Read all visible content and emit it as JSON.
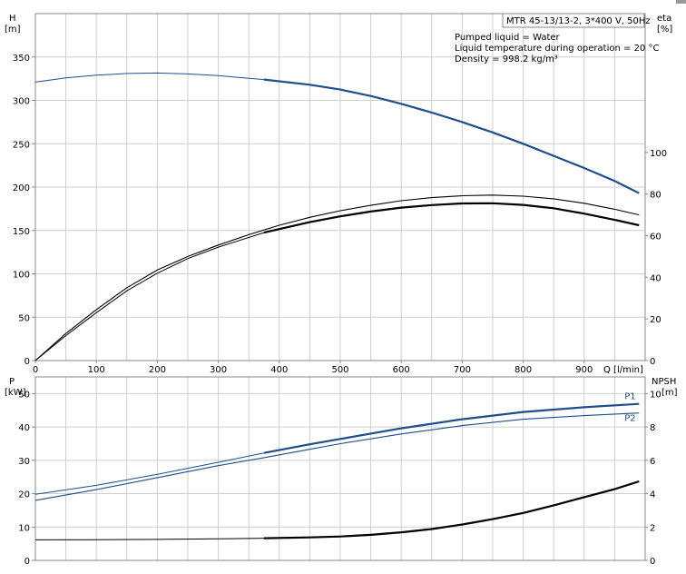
{
  "chart_data": [
    {
      "type": "line",
      "id": "head-efficiency",
      "ylabel": "H",
      "yunit": "[m]",
      "y2label": "eta",
      "y2unit": "[%]",
      "xlabel": "Q [l/min]",
      "xlim": [
        0,
        1000
      ],
      "ylim": [
        0,
        400
      ],
      "y2lim": [
        0,
        166.7
      ],
      "xticks": [
        "0",
        "100",
        "200",
        "300",
        "400",
        "500",
        "600",
        "700",
        "800",
        "900"
      ],
      "xtick_values": [
        0,
        100,
        200,
        300,
        400,
        500,
        600,
        700,
        800,
        900
      ],
      "yticks": [
        "0",
        "50",
        "100",
        "150",
        "200",
        "250",
        "300",
        "350"
      ],
      "ytick_values": [
        0,
        50,
        100,
        150,
        200,
        250,
        300,
        350
      ],
      "y2ticks": [
        "0",
        "20",
        "40",
        "60",
        "80",
        "100"
      ],
      "y2tick_values": [
        0,
        20,
        40,
        60,
        80,
        100
      ],
      "grid": true,
      "info_box": "MTR 45-13/13-2, 3*400 V, 50Hz",
      "annotations": [
        "Pumped liquid = Water",
        "Liquid temperature during operation = 20 °C",
        "Density = 998.2 kg/m³"
      ],
      "colors": {
        "head": "#1f4e8c",
        "efficiency": "#000000"
      },
      "series": [
        {
          "axis": "left",
          "role": "head",
          "x": [
            0,
            50,
            100,
            150,
            200,
            250,
            300,
            375,
            450,
            500,
            550,
            600,
            650,
            700,
            750,
            800,
            850,
            900,
            950,
            990
          ],
          "values": [
            321,
            326,
            329,
            331,
            331.5,
            330.5,
            328.5,
            324,
            318,
            312.5,
            305,
            296,
            286,
            275,
            263,
            250,
            236,
            222,
            207,
            193
          ],
          "operating_range": [
            375,
            990
          ]
        },
        {
          "axis": "right",
          "role": "efficiency-1",
          "x": [
            0,
            50,
            100,
            150,
            200,
            250,
            300,
            350,
            400,
            450,
            500,
            550,
            600,
            650,
            700,
            750,
            800,
            850,
            900,
            950,
            990
          ],
          "values": [
            0,
            13,
            24.5,
            35,
            43.5,
            50,
            55.5,
            60.5,
            65,
            68.8,
            72,
            74.6,
            76.8,
            78.3,
            79.2,
            79.5,
            79,
            77.7,
            75.6,
            72.7,
            70
          ],
          "operating_range": [
            0,
            990
          ]
        },
        {
          "axis": "right",
          "role": "efficiency-2",
          "x": [
            0,
            50,
            100,
            150,
            200,
            250,
            300,
            375,
            400,
            450,
            500,
            550,
            600,
            650,
            700,
            750,
            800,
            850,
            900,
            950,
            990
          ],
          "values": [
            0,
            12,
            23,
            33.5,
            42,
            49,
            54.5,
            61.5,
            63.2,
            66.5,
            69.3,
            71.6,
            73.5,
            74.7,
            75.5,
            75.6,
            74.8,
            73.2,
            70.6,
            67.6,
            65
          ],
          "operating_range": [
            375,
            990
          ]
        }
      ]
    },
    {
      "type": "line",
      "id": "power-npsh",
      "ylabel": "P",
      "yunit": "[kW]",
      "y2label": "NPSH",
      "y2unit": "[m]",
      "xlim": [
        0,
        1000
      ],
      "ylim": [
        0,
        55
      ],
      "y2lim": [
        0,
        11
      ],
      "yticks": [
        "0",
        "10",
        "20",
        "30",
        "40",
        "50"
      ],
      "ytick_values": [
        0,
        10,
        20,
        30,
        40,
        50
      ],
      "y2ticks": [
        "0",
        "2",
        "4",
        "6",
        "8",
        "10"
      ],
      "y2tick_values": [
        0,
        2,
        4,
        6,
        8,
        10
      ],
      "grid": true,
      "colors": {
        "power": "#1f4e8c",
        "npsh": "#000000"
      },
      "series": [
        {
          "name": "P1",
          "axis": "left",
          "role": "power",
          "x": [
            0,
            100,
            200,
            300,
            375,
            450,
            500,
            600,
            700,
            800,
            900,
            990
          ],
          "values": [
            19.8,
            22.5,
            25.8,
            29.4,
            32.2,
            34.8,
            36.4,
            39.6,
            42.3,
            44.5,
            45.9,
            46.9
          ],
          "operating_range": [
            375,
            990
          ]
        },
        {
          "name": "P2",
          "axis": "left",
          "role": "power",
          "x": [
            0,
            100,
            200,
            300,
            375,
            450,
            500,
            600,
            700,
            800,
            900,
            990
          ],
          "values": [
            18,
            21.2,
            24.8,
            28.4,
            30.8,
            33.3,
            35,
            37.9,
            40.4,
            42.3,
            43.4,
            44.2
          ],
          "operating_range": [
            0,
            990
          ]
        },
        {
          "axis": "right",
          "role": "npsh",
          "x": [
            0,
            100,
            200,
            300,
            375,
            450,
            500,
            550,
            600,
            650,
            700,
            750,
            800,
            850,
            900,
            950,
            990
          ],
          "values": [
            1.23,
            1.24,
            1.26,
            1.29,
            1.33,
            1.38,
            1.43,
            1.53,
            1.68,
            1.88,
            2.15,
            2.47,
            2.84,
            3.3,
            3.79,
            4.27,
            4.74
          ],
          "operating_range": [
            375,
            990
          ]
        }
      ]
    }
  ]
}
